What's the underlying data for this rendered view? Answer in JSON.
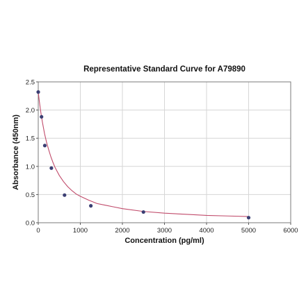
{
  "chart_data": {
    "type": "scatter",
    "title": "Representative Standard Curve for A79890",
    "xlabel": "Concentration (pg/ml)",
    "ylabel": "Absorbance (450nm)",
    "xlim": [
      0,
      6000
    ],
    "ylim": [
      0,
      2.5
    ],
    "xticks": [
      0,
      1000,
      2000,
      3000,
      4000,
      5000,
      6000
    ],
    "yticks": [
      0,
      0.5,
      1.0,
      1.5,
      2.0,
      2.5
    ],
    "xtick_labels": [
      "0",
      "1000",
      "2000",
      "3000",
      "4000",
      "5000",
      "6000"
    ],
    "ytick_labels": [
      "0.0",
      "0.5",
      "1.0",
      "1.5",
      "2.0",
      "2.5"
    ],
    "grid": true,
    "series": [
      {
        "type": "scatter",
        "x": [
          0,
          78,
          156,
          312,
          625,
          1250,
          2500,
          5000
        ],
        "y": [
          2.32,
          1.88,
          1.37,
          0.97,
          0.49,
          0.3,
          0.19,
          0.09
        ],
        "color": "#3b3f73"
      },
      {
        "type": "line",
        "x": [
          0,
          25,
          50,
          75,
          100,
          150,
          200,
          250,
          300,
          350,
          400,
          450,
          500,
          600,
          700,
          800,
          900,
          1000,
          1200,
          1400,
          1600,
          1800,
          2000,
          2500,
          3000,
          3500,
          4000,
          4500,
          5000
        ],
        "y": [
          2.32,
          2.16,
          2.02,
          1.89,
          1.78,
          1.58,
          1.42,
          1.29,
          1.17,
          1.07,
          0.98,
          0.91,
          0.84,
          0.73,
          0.64,
          0.57,
          0.51,
          0.47,
          0.4,
          0.34,
          0.31,
          0.28,
          0.25,
          0.2,
          0.17,
          0.15,
          0.13,
          0.12,
          0.11
        ],
        "color": "#c04a6a"
      }
    ]
  }
}
